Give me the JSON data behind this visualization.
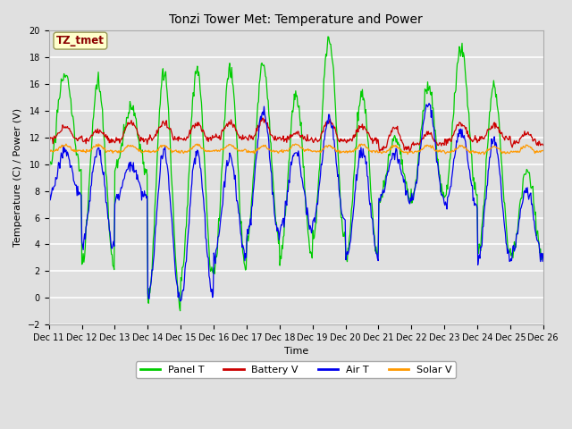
{
  "title": "Tonzi Tower Met: Temperature and Power",
  "xlabel": "Time",
  "ylabel": "Temperature (C) / Power (V)",
  "ylim": [
    -2,
    20
  ],
  "yticks": [
    -2,
    0,
    2,
    4,
    6,
    8,
    10,
    12,
    14,
    16,
    18,
    20
  ],
  "xtick_labels": [
    "Dec 11",
    "Dec 12",
    "Dec 13",
    "Dec 14",
    "Dec 15",
    "Dec 16",
    "Dec 17",
    "Dec 18",
    "Dec 19",
    "Dec 20",
    "Dec 21",
    "Dec 22",
    "Dec 23",
    "Dec 24",
    "Dec 25",
    "Dec 26"
  ],
  "bg_color": "#e0e0e0",
  "plot_bg_color": "#e0e0e0",
  "grid_color": "#ffffff",
  "annotation_text": "TZ_tmet",
  "annotation_bg": "#ffffcc",
  "annotation_border": "#999955",
  "colors": {
    "panel_t": "#00cc00",
    "battery_v": "#cc0000",
    "air_t": "#0000ee",
    "solar_v": "#ff9900"
  },
  "legend_labels": [
    "Panel T",
    "Battery V",
    "Air T",
    "Solar V"
  ],
  "title_fontsize": 10,
  "axis_fontsize": 8,
  "tick_fontsize": 7,
  "legend_fontsize": 8
}
